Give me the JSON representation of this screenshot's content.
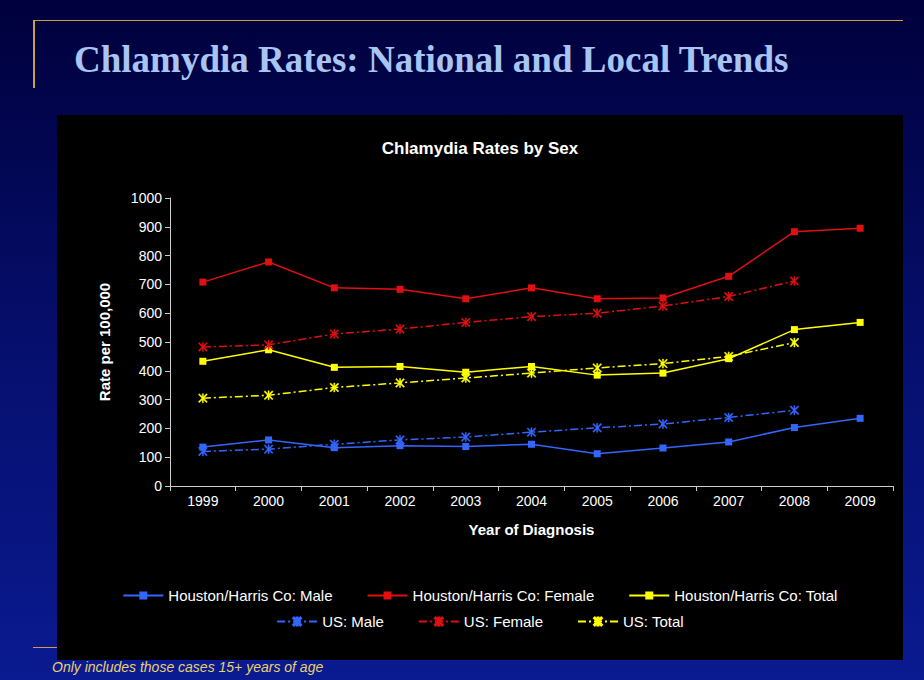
{
  "title": "Chlamydia Rates: National and Local Trends",
  "footnote": "Only includes those cases 15+ years of age",
  "chart_data": {
    "type": "line",
    "title": "Chlamydia Rates by Sex",
    "x_label": "Year of Diagnosis",
    "y_label": "Rate per 100,000",
    "categories": [
      "1999",
      "2000",
      "2001",
      "2002",
      "2003",
      "2004",
      "2005",
      "2006",
      "2007",
      "2008",
      "2009"
    ],
    "series": [
      {
        "name": "Houston/Harris Co: Male",
        "color": "#3366ff",
        "marker": "square",
        "line_style": "solid",
        "values": [
          135,
          160,
          133,
          140,
          137,
          145,
          112,
          132,
          153,
          203,
          235
        ]
      },
      {
        "name": "Houston/Harris Co: Female",
        "color": "#e01010",
        "marker": "square",
        "line_style": "solid",
        "values": [
          708,
          778,
          688,
          683,
          650,
          688,
          650,
          653,
          728,
          883,
          895
        ]
      },
      {
        "name": "Houston/Harris Co: Total",
        "color": "#ffff00",
        "marker": "square",
        "line_style": "solid",
        "values": [
          433,
          473,
          412,
          415,
          395,
          415,
          385,
          392,
          442,
          543,
          568
        ]
      },
      {
        "name": "US: Male",
        "color": "#3366ff",
        "marker": "star",
        "line_style": "dashdot",
        "values": [
          120,
          128,
          145,
          160,
          170,
          187,
          202,
          215,
          238,
          263,
          null
        ]
      },
      {
        "name": "US: Female",
        "color": "#e01010",
        "marker": "star",
        "line_style": "dashdot",
        "values": [
          483,
          490,
          528,
          545,
          568,
          588,
          600,
          625,
          658,
          712,
          null
        ]
      },
      {
        "name": "US: Total",
        "color": "#ffff00",
        "marker": "star",
        "line_style": "dashdot",
        "values": [
          305,
          315,
          342,
          358,
          375,
          392,
          410,
          425,
          450,
          498,
          null
        ]
      }
    ],
    "ylim": [
      0,
      1000
    ],
    "yticks": [
      0,
      100,
      200,
      300,
      400,
      500,
      600,
      700,
      800,
      900,
      1000
    ],
    "grid": false,
    "legend": "bottom"
  }
}
